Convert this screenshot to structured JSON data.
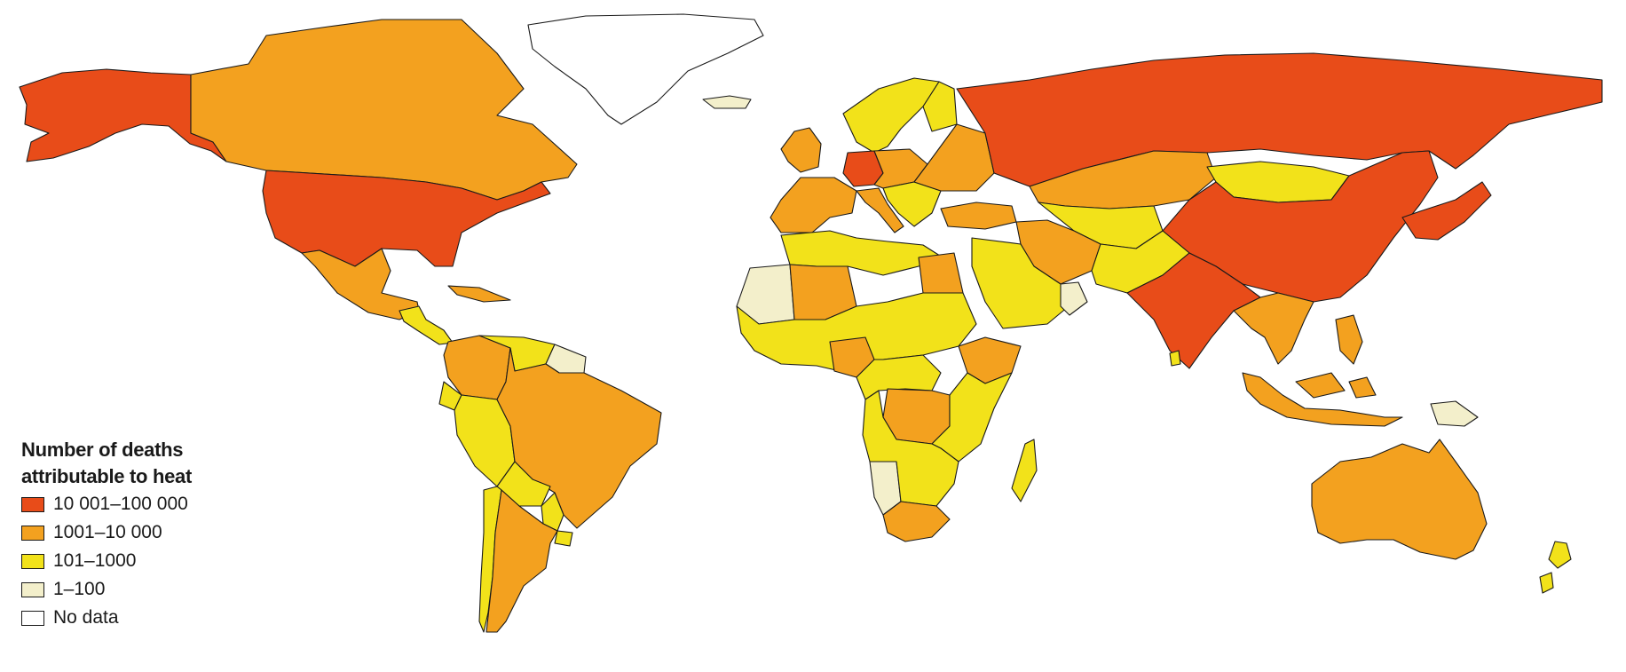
{
  "colors": {
    "class_1": "#e84c19",
    "class_2": "#f3a11f",
    "class_3": "#f2e21a",
    "class_4": "#f3efcb",
    "class_5": "#ffffff"
  },
  "legend": {
    "title_line1": "Number of deaths",
    "title_line2": "attributable to heat",
    "items": [
      {
        "label": "10 001–100 000",
        "class": "class_1"
      },
      {
        "label": "1001–10 000",
        "class": "class_2"
      },
      {
        "label": "101–1000",
        "class": "class_3"
      },
      {
        "label": "1–100",
        "class": "class_4"
      },
      {
        "label": "No data",
        "class": "class_5"
      }
    ]
  },
  "regions": [
    {
      "name": "alaska",
      "class": "class_1"
    },
    {
      "name": "canada",
      "class": "class_2"
    },
    {
      "name": "united-states",
      "class": "class_1"
    },
    {
      "name": "mexico",
      "class": "class_2"
    },
    {
      "name": "central-america",
      "class": "class_3"
    },
    {
      "name": "cuba",
      "class": "class_2"
    },
    {
      "name": "greenland",
      "class": "class_5"
    },
    {
      "name": "iceland",
      "class": "class_4"
    },
    {
      "name": "colombia",
      "class": "class_2"
    },
    {
      "name": "venezuela",
      "class": "class_3"
    },
    {
      "name": "guianas",
      "class": "class_4"
    },
    {
      "name": "ecuador",
      "class": "class_3"
    },
    {
      "name": "peru",
      "class": "class_3"
    },
    {
      "name": "brazil",
      "class": "class_2"
    },
    {
      "name": "bolivia",
      "class": "class_3"
    },
    {
      "name": "paraguay",
      "class": "class_3"
    },
    {
      "name": "chile",
      "class": "class_3"
    },
    {
      "name": "argentina",
      "class": "class_2"
    },
    {
      "name": "uruguay",
      "class": "class_3"
    },
    {
      "name": "uk-ireland",
      "class": "class_2"
    },
    {
      "name": "scandinavia",
      "class": "class_3"
    },
    {
      "name": "finland",
      "class": "class_3"
    },
    {
      "name": "france-iberia",
      "class": "class_2"
    },
    {
      "name": "germany",
      "class": "class_1"
    },
    {
      "name": "central-europe",
      "class": "class_2"
    },
    {
      "name": "italy",
      "class": "class_2"
    },
    {
      "name": "balkans",
      "class": "class_3"
    },
    {
      "name": "eastern-europe",
      "class": "class_2"
    },
    {
      "name": "turkey",
      "class": "class_2"
    },
    {
      "name": "russia",
      "class": "class_1"
    },
    {
      "name": "kazakhstan",
      "class": "class_2"
    },
    {
      "name": "central-asia",
      "class": "class_3"
    },
    {
      "name": "mongolia",
      "class": "class_3"
    },
    {
      "name": "china",
      "class": "class_1"
    },
    {
      "name": "korea-japan",
      "class": "class_1"
    },
    {
      "name": "iran",
      "class": "class_2"
    },
    {
      "name": "afghanistan-pakistan",
      "class": "class_3"
    },
    {
      "name": "india",
      "class": "class_1"
    },
    {
      "name": "southeast-asia",
      "class": "class_2"
    },
    {
      "name": "arabian-peninsula",
      "class": "class_3"
    },
    {
      "name": "oman-yemen-coast",
      "class": "class_4"
    },
    {
      "name": "western-sahara",
      "class": "class_4"
    },
    {
      "name": "north-africa",
      "class": "class_3"
    },
    {
      "name": "algeria",
      "class": "class_2"
    },
    {
      "name": "egypt",
      "class": "class_2"
    },
    {
      "name": "sahel",
      "class": "class_3"
    },
    {
      "name": "nigeria",
      "class": "class_2"
    },
    {
      "name": "ethiopia",
      "class": "class_2"
    },
    {
      "name": "central-africa",
      "class": "class_3"
    },
    {
      "name": "dr-congo",
      "class": "class_2"
    },
    {
      "name": "east-africa",
      "class": "class_3"
    },
    {
      "name": "namibia",
      "class": "class_4"
    },
    {
      "name": "southern-africa",
      "class": "class_3"
    },
    {
      "name": "south-africa",
      "class": "class_2"
    },
    {
      "name": "madagascar",
      "class": "class_3"
    },
    {
      "name": "indonesia",
      "class": "class_2"
    },
    {
      "name": "philippines",
      "class": "class_2"
    },
    {
      "name": "papua-new-guinea",
      "class": "class_4"
    },
    {
      "name": "australia",
      "class": "class_2"
    },
    {
      "name": "new-zealand",
      "class": "class_3"
    },
    {
      "name": "sri-lanka",
      "class": "class_3"
    }
  ]
}
